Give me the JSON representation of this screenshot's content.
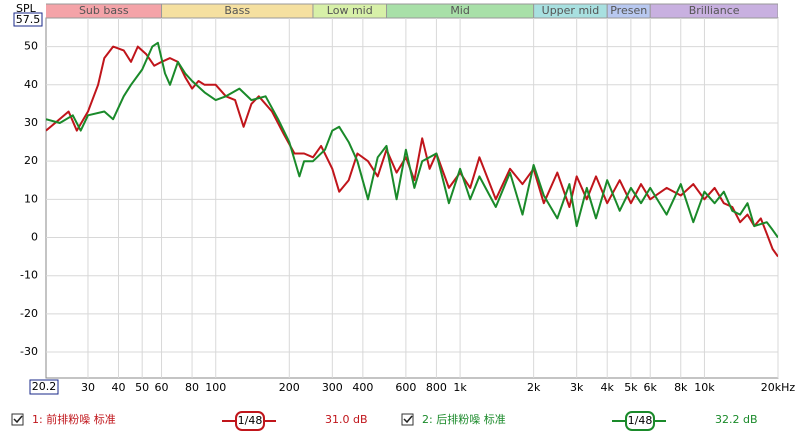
{
  "chart_data": {
    "type": "line",
    "y_label": "SPL",
    "log_x": true,
    "xlim": [
      20.2,
      20000
    ],
    "ylim": [
      -36.8,
      57.5
    ],
    "yticks": [
      -30,
      -20,
      -10,
      0,
      10,
      20,
      30,
      40,
      50
    ],
    "xticks": [
      30,
      40,
      50,
      60,
      80,
      100,
      200,
      300,
      400,
      600,
      800,
      {
        "value": 1000,
        "label": "1k"
      },
      {
        "value": 2000,
        "label": "2k"
      },
      {
        "value": 3000,
        "label": "3k"
      },
      {
        "value": 4000,
        "label": "4k"
      },
      {
        "value": 5000,
        "label": "5k"
      },
      {
        "value": 6000,
        "label": "6k"
      },
      {
        "value": 8000,
        "label": "8k"
      },
      {
        "value": 10000,
        "label": "10k"
      },
      {
        "value": 20000,
        "label": "20kHz"
      }
    ],
    "grid": true,
    "bands": [
      {
        "name": "Sub bass",
        "range": [
          20,
          60
        ],
        "color": "#f4a3a8"
      },
      {
        "name": "Bass",
        "range": [
          60,
          250
        ],
        "color": "#f5e0a0"
      },
      {
        "name": "Low mid",
        "range": [
          250,
          500
        ],
        "color": "#d7f0a8"
      },
      {
        "name": "Mid",
        "range": [
          500,
          2000
        ],
        "color": "#a8e0a8"
      },
      {
        "name": "Upper mid",
        "range": [
          2000,
          4000
        ],
        "color": "#a8e0e0"
      },
      {
        "name": "Presen",
        "range": [
          4000,
          6000
        ],
        "color": "#b8c8f0"
      },
      {
        "name": "Brilliance",
        "range": [
          6000,
          20000
        ],
        "color": "#c8b0e0"
      }
    ],
    "series": [
      {
        "name": "1: 前排粉噪 标准",
        "color": "#c0151b",
        "smoothing": "1/48",
        "level": "31.0 dB",
        "x": [
          20.2,
          22,
          25,
          27,
          30,
          33,
          35,
          38,
          42,
          45,
          48,
          52,
          56,
          60,
          65,
          70,
          75,
          80,
          85,
          90,
          100,
          110,
          120,
          130,
          140,
          150,
          170,
          190,
          210,
          230,
          250,
          270,
          300,
          320,
          350,
          380,
          420,
          460,
          500,
          550,
          600,
          650,
          700,
          750,
          800,
          900,
          1000,
          1100,
          1200,
          1400,
          1600,
          1800,
          2000,
          2200,
          2500,
          2800,
          3000,
          3300,
          3600,
          4000,
          4500,
          5000,
          5500,
          6000,
          7000,
          8000,
          9000,
          10000,
          11000,
          12000,
          13000,
          14000,
          15000,
          16000,
          17000,
          18000,
          19000,
          20000
        ],
        "values": [
          28,
          30,
          33,
          28,
          33,
          40,
          47,
          50,
          49,
          46,
          50,
          48,
          45,
          46,
          47,
          46,
          42,
          39,
          41,
          40,
          40,
          37,
          36,
          29,
          35,
          37,
          33,
          27,
          22,
          22,
          21,
          24,
          18,
          12,
          15,
          22,
          20,
          16,
          23,
          17,
          21,
          15,
          26,
          18,
          22,
          13,
          17,
          13,
          21,
          10,
          18,
          14,
          18,
          9,
          17,
          8,
          16,
          10,
          16,
          9,
          15,
          9,
          14,
          10,
          13,
          11,
          14,
          10,
          13,
          9,
          8,
          4,
          6,
          3,
          5,
          1,
          -3,
          -5
        ]
      },
      {
        "name": "2: 后排粉噪 标准",
        "color": "#1a8a2a",
        "smoothing": "1/48",
        "level": "32.2 dB",
        "x": [
          20.2,
          23,
          26,
          28,
          30,
          35,
          38,
          42,
          45,
          50,
          55,
          58,
          62,
          65,
          70,
          75,
          80,
          90,
          100,
          110,
          125,
          140,
          160,
          180,
          200,
          220,
          230,
          250,
          280,
          300,
          320,
          350,
          380,
          420,
          460,
          500,
          550,
          600,
          650,
          700,
          800,
          900,
          1000,
          1100,
          1200,
          1400,
          1600,
          1800,
          2000,
          2200,
          2500,
          2800,
          3000,
          3300,
          3600,
          4000,
          4500,
          5000,
          5500,
          6000,
          7000,
          8000,
          9000,
          10000,
          11000,
          12000,
          13000,
          14000,
          15000,
          16000,
          18000,
          19000,
          20000
        ],
        "values": [
          31,
          30,
          32,
          28,
          32,
          33,
          31,
          37,
          40,
          44,
          50,
          51,
          43,
          40,
          46,
          43,
          41,
          38,
          36,
          37,
          39,
          36,
          37,
          31,
          25,
          16,
          20,
          20,
          23,
          28,
          29,
          25,
          20,
          10,
          21,
          24,
          10,
          23,
          13,
          20,
          22,
          9,
          18,
          10,
          16,
          8,
          17,
          6,
          19,
          11,
          5,
          14,
          3,
          13,
          5,
          15,
          7,
          13,
          9,
          13,
          6,
          14,
          4,
          12,
          9,
          12,
          7,
          6,
          9,
          3,
          4,
          2,
          0
        ]
      }
    ]
  }
}
